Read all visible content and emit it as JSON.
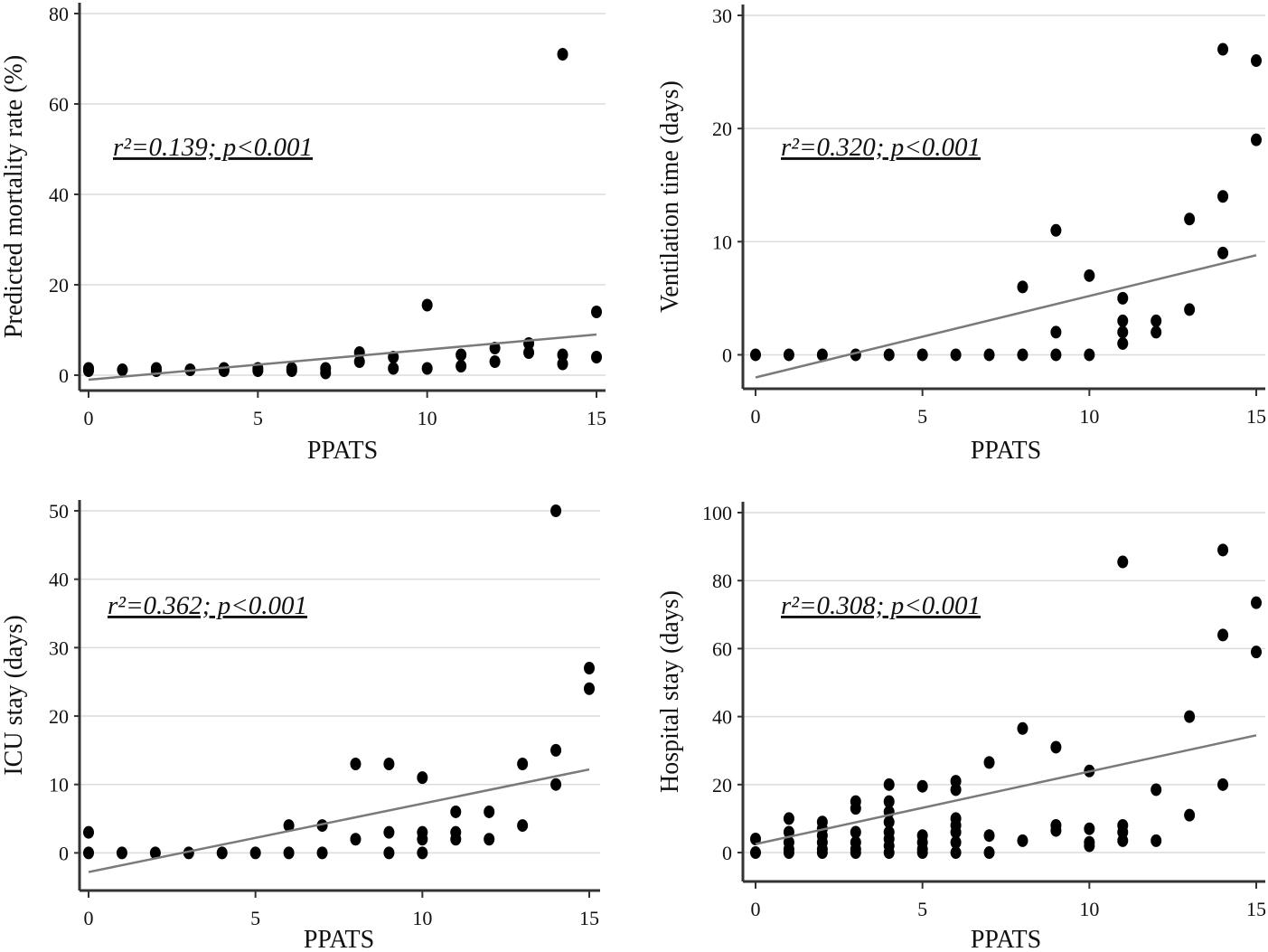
{
  "chart_data": [
    {
      "type": "scatter",
      "xlabel": "PPATS",
      "ylabel": "Predicted mortality rate (%)",
      "annotation": "r²=0.139; p<0.001",
      "xlim": [
        0,
        15
      ],
      "ylim": [
        -3.4,
        80
      ],
      "xticks": [
        0,
        5,
        10,
        15
      ],
      "yticks": [
        0,
        20,
        40,
        60,
        80
      ],
      "grid": true,
      "points": [
        [
          0,
          1.5
        ],
        [
          0,
          1
        ],
        [
          1,
          1.2
        ],
        [
          2,
          1.5
        ],
        [
          2,
          1
        ],
        [
          3,
          1.2
        ],
        [
          4,
          1.5
        ],
        [
          4,
          1
        ],
        [
          5,
          1.5
        ],
        [
          5,
          1
        ],
        [
          6,
          1.5
        ],
        [
          6,
          1
        ],
        [
          7,
          1.5
        ],
        [
          7,
          0.5
        ],
        [
          8,
          5
        ],
        [
          8,
          3
        ],
        [
          9,
          4
        ],
        [
          9,
          1.5
        ],
        [
          10,
          15.5
        ],
        [
          10,
          1.5
        ],
        [
          11,
          4.5
        ],
        [
          11,
          2
        ],
        [
          12,
          6
        ],
        [
          12,
          3
        ],
        [
          13,
          7
        ],
        [
          13,
          5
        ],
        [
          14,
          71
        ],
        [
          14,
          4.5
        ],
        [
          14,
          2.5
        ],
        [
          15,
          14
        ],
        [
          15,
          4
        ]
      ],
      "fit_line": [
        [
          0,
          -1
        ],
        [
          15,
          9
        ]
      ]
    },
    {
      "type": "scatter",
      "xlabel": "PPATS",
      "ylabel": "Ventilation time (days)",
      "annotation": "r²=0.320; p<0.001",
      "xlim": [
        0,
        15
      ],
      "ylim": [
        -3,
        30
      ],
      "xticks": [
        0,
        5,
        10,
        15
      ],
      "yticks": [
        0,
        10,
        20,
        30
      ],
      "grid": true,
      "points": [
        [
          0,
          0
        ],
        [
          1,
          0
        ],
        [
          2,
          0
        ],
        [
          3,
          0
        ],
        [
          4,
          0
        ],
        [
          5,
          0
        ],
        [
          6,
          0
        ],
        [
          7,
          0
        ],
        [
          8,
          6
        ],
        [
          8,
          0
        ],
        [
          9,
          11
        ],
        [
          9,
          2
        ],
        [
          9,
          0
        ],
        [
          10,
          7
        ],
        [
          10,
          0
        ],
        [
          11,
          5
        ],
        [
          11,
          3
        ],
        [
          11,
          2
        ],
        [
          11,
          1
        ],
        [
          12,
          3
        ],
        [
          12,
          2
        ],
        [
          13,
          12
        ],
        [
          13,
          4
        ],
        [
          14,
          27
        ],
        [
          14,
          14
        ],
        [
          14,
          9
        ],
        [
          15,
          26
        ],
        [
          15,
          19
        ]
      ],
      "fit_line": [
        [
          0,
          -2
        ],
        [
          15,
          8.8
        ]
      ]
    },
    {
      "type": "scatter",
      "xlabel": "PPATS",
      "ylabel": "ICU stay (days)",
      "annotation": "r²=0.362; p<0.001",
      "xlim": [
        0,
        15
      ],
      "ylim": [
        -5.5,
        50
      ],
      "xticks": [
        0,
        5,
        10,
        15
      ],
      "yticks": [
        0,
        10,
        20,
        30,
        40,
        50
      ],
      "grid": true,
      "points": [
        [
          0,
          3
        ],
        [
          0,
          0
        ],
        [
          1,
          0
        ],
        [
          2,
          0
        ],
        [
          3,
          0
        ],
        [
          4,
          0
        ],
        [
          5,
          0
        ],
        [
          6,
          4
        ],
        [
          6,
          0
        ],
        [
          7,
          4
        ],
        [
          7,
          0
        ],
        [
          8,
          13
        ],
        [
          8,
          2
        ],
        [
          9,
          13
        ],
        [
          9,
          3
        ],
        [
          9,
          0
        ],
        [
          10,
          11
        ],
        [
          10,
          3
        ],
        [
          10,
          2
        ],
        [
          10,
          0
        ],
        [
          11,
          6
        ],
        [
          11,
          3
        ],
        [
          11,
          2
        ],
        [
          12,
          6
        ],
        [
          12,
          2
        ],
        [
          13,
          13
        ],
        [
          13,
          4
        ],
        [
          14,
          50
        ],
        [
          14,
          15
        ],
        [
          14,
          10
        ],
        [
          15,
          27
        ],
        [
          15,
          24
        ]
      ],
      "fit_line": [
        [
          0,
          -2.8
        ],
        [
          15,
          12.2
        ]
      ]
    },
    {
      "type": "scatter",
      "xlabel": "PPATS",
      "ylabel": "Hospital stay (days)",
      "annotation": "r²=0.308; p<0.001",
      "xlim": [
        0,
        15
      ],
      "ylim": [
        -8.5,
        100
      ],
      "xticks": [
        0,
        5,
        10,
        15
      ],
      "yticks": [
        0,
        20,
        40,
        60,
        80,
        100
      ],
      "grid": true,
      "points": [
        [
          0,
          4
        ],
        [
          0,
          0
        ],
        [
          1,
          10
        ],
        [
          1,
          6
        ],
        [
          1,
          3
        ],
        [
          1,
          1
        ],
        [
          1,
          0
        ],
        [
          2,
          9
        ],
        [
          2,
          7
        ],
        [
          2,
          5
        ],
        [
          2,
          3
        ],
        [
          2,
          1
        ],
        [
          2,
          0
        ],
        [
          3,
          15
        ],
        [
          3,
          13
        ],
        [
          3,
          6
        ],
        [
          3,
          3
        ],
        [
          3,
          1
        ],
        [
          3,
          0
        ],
        [
          4,
          20
        ],
        [
          4,
          15
        ],
        [
          4,
          12
        ],
        [
          4,
          9
        ],
        [
          4,
          6
        ],
        [
          4,
          4
        ],
        [
          4,
          2
        ],
        [
          4,
          0
        ],
        [
          5,
          19.5
        ],
        [
          5,
          5
        ],
        [
          5,
          3
        ],
        [
          5,
          1
        ],
        [
          5,
          0
        ],
        [
          6,
          21
        ],
        [
          6,
          18.5
        ],
        [
          6,
          10
        ],
        [
          6,
          8
        ],
        [
          6,
          6
        ],
        [
          6,
          3
        ],
        [
          6,
          0
        ],
        [
          7,
          26.5
        ],
        [
          7,
          5
        ],
        [
          7,
          0
        ],
        [
          8,
          36.5
        ],
        [
          8,
          3.5
        ],
        [
          9,
          31
        ],
        [
          9,
          8
        ],
        [
          9,
          6.5
        ],
        [
          10,
          24
        ],
        [
          10,
          7
        ],
        [
          10,
          3
        ],
        [
          10,
          2
        ],
        [
          11,
          85.5
        ],
        [
          11,
          8
        ],
        [
          11,
          6
        ],
        [
          11,
          3.5
        ],
        [
          12,
          18.5
        ],
        [
          12,
          3.5
        ],
        [
          13,
          40
        ],
        [
          13,
          11
        ],
        [
          14,
          89
        ],
        [
          14,
          64
        ],
        [
          14,
          20
        ],
        [
          15,
          73.5
        ],
        [
          15,
          59
        ]
      ],
      "fit_line": [
        [
          0,
          2.5
        ],
        [
          15,
          34.5
        ]
      ]
    }
  ],
  "colors": {
    "points": "#000000",
    "fit_line": "#7a7a7a",
    "grid": "#dcdcdc",
    "axis": "#333333"
  }
}
